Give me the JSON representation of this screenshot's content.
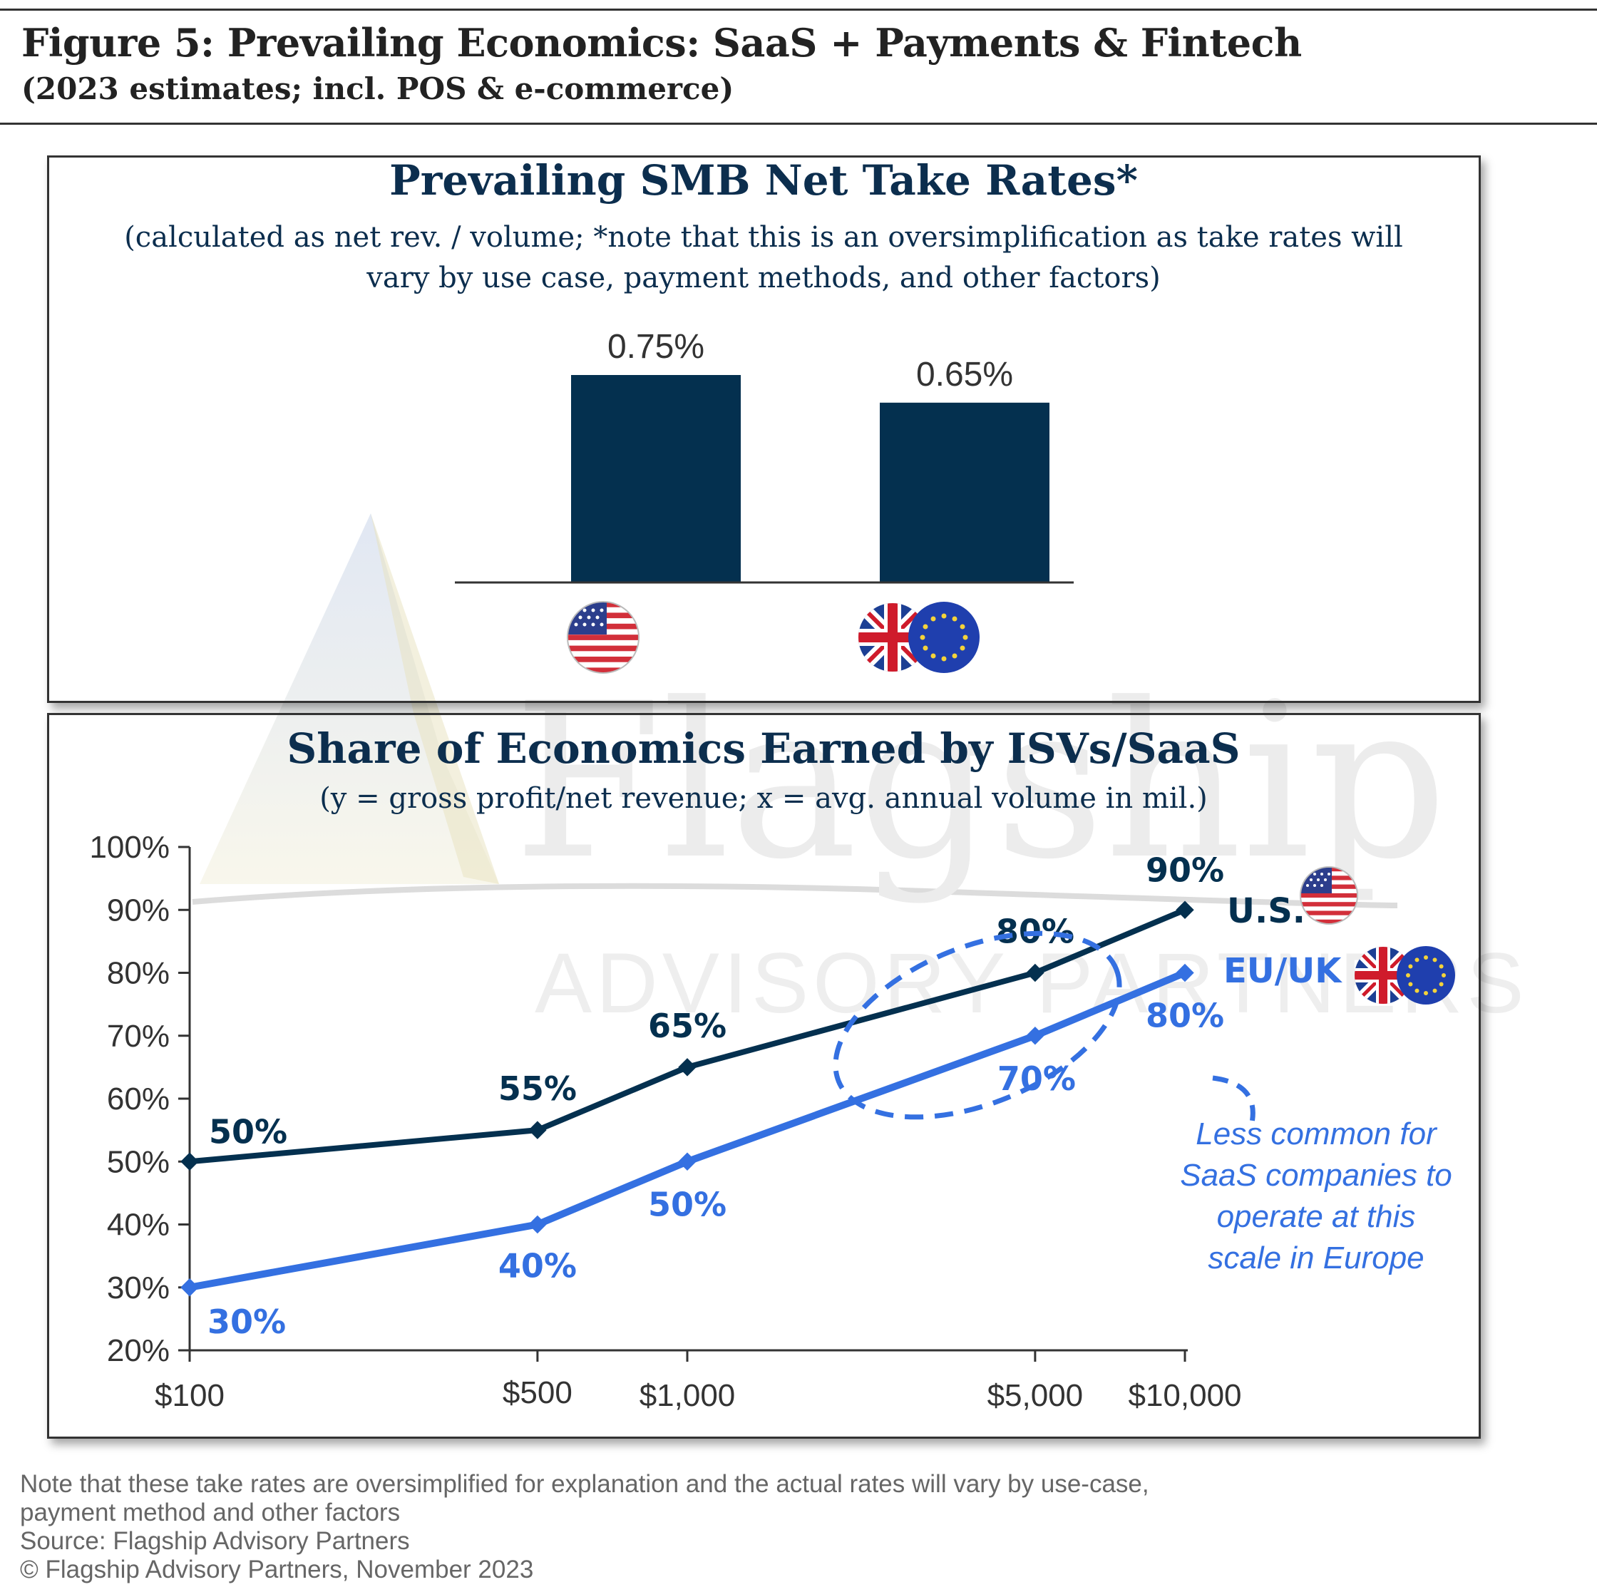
{
  "figure": {
    "title": "Figure 5: Prevailing Economics: SaaS + Payments & Fintech",
    "subtitle": "(2023 estimates; incl. POS & e-commerce)"
  },
  "watermark": {
    "line1": "Flagship",
    "line2": "ADVISORY PARTNERS"
  },
  "colors": {
    "navy": "#04304F",
    "blue": "#3470E1",
    "title_text": "#0C2E4E"
  },
  "chart_data": [
    {
      "type": "bar",
      "title": "Prevailing SMB Net Take Rates*",
      "subtitle_line1": "(calculated as net rev. / volume; *note that this is an oversimplification as take rates will",
      "subtitle_line2": "vary by use case, payment methods, and other factors)",
      "categories": [
        "us-flag-icon",
        "uk-eu-flag-icon"
      ],
      "values": [
        0.75,
        0.65
      ],
      "value_labels": [
        "0.75%",
        "0.65%"
      ],
      "ylim": [
        0,
        0.75
      ],
      "grid": false,
      "legend": "none"
    },
    {
      "type": "line",
      "title": "Share of Economics Earned by ISVs/SaaS",
      "subtitle": "(y = gross profit/net revenue; x = avg. annual volume in mil.)",
      "x_scale": "log",
      "x": [
        100,
        500,
        1000,
        5000,
        10000
      ],
      "x_tick_labels": [
        "$100",
        "$500",
        "$1,000",
        "$5,000",
        "$10,000"
      ],
      "y_ticks": [
        20,
        30,
        40,
        50,
        60,
        70,
        80,
        90,
        100
      ],
      "y_tick_labels": [
        "20%",
        "30%",
        "40%",
        "50%",
        "60%",
        "70%",
        "80%",
        "90%",
        "100%"
      ],
      "ylim": [
        20,
        100
      ],
      "grid": false,
      "series": [
        {
          "name": "U.S.",
          "values": [
            50,
            55,
            65,
            80,
            90
          ],
          "labels": [
            "50%",
            "55%",
            "65%",
            "80%",
            "90%"
          ],
          "color": "#04304F"
        },
        {
          "name": "EU/UK",
          "values": [
            30,
            40,
            50,
            70,
            80
          ],
          "labels": [
            "30%",
            "40%",
            "50%",
            "70%",
            "80%"
          ],
          "color": "#3470E1"
        }
      ],
      "annotation": {
        "lines": [
          "Less common for",
          "SaaS companies to",
          "operate at this",
          "scale in Europe"
        ]
      }
    }
  ],
  "footnotes": {
    "note_line1": "Note that these take rates are oversimplified for explanation and the actual rates will vary by use-case,",
    "note_line2": "payment method and other factors",
    "source": "Source: Flagship Advisory Partners",
    "copyright": "© Flagship Advisory Partners, November 2023"
  }
}
